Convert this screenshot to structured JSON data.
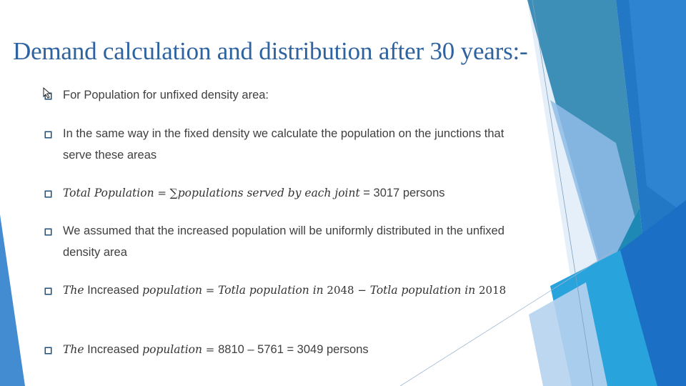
{
  "title": "Demand calculation and distribution after 30 years:-",
  "bullets": [
    {
      "text": "For Population for unfixed density area:"
    },
    {
      "text": "In the same way in the fixed density we calculate the population on the junctions that serve these areas"
    },
    {
      "parts": [
        "Total Population",
        " = ",
        "∑populations served by each joint",
        " = 3017 persons"
      ]
    },
    {
      "text": "We assumed that the increased population will be uniformly distributed in the unfixed density area"
    },
    {
      "parts": [
        "The",
        " Increased ",
        "population",
        " = ",
        "Totla population in",
        " 2048 − ",
        "Totla population in",
        " 2018"
      ]
    },
    {
      "parts": [
        "The",
        " Increased ",
        "population",
        " = ",
        " 8810 – 5761 = 3049 persons"
      ]
    }
  ],
  "theme": {
    "title_color": "#2e63a0",
    "bullet_color": "#1f4e79",
    "accent_blue": "#2f7ec8",
    "accent_light": "#bcd5ee"
  },
  "icons": {
    "bullet": "square-checkbox-icon",
    "cursor": "mouse-pointer-icon"
  }
}
